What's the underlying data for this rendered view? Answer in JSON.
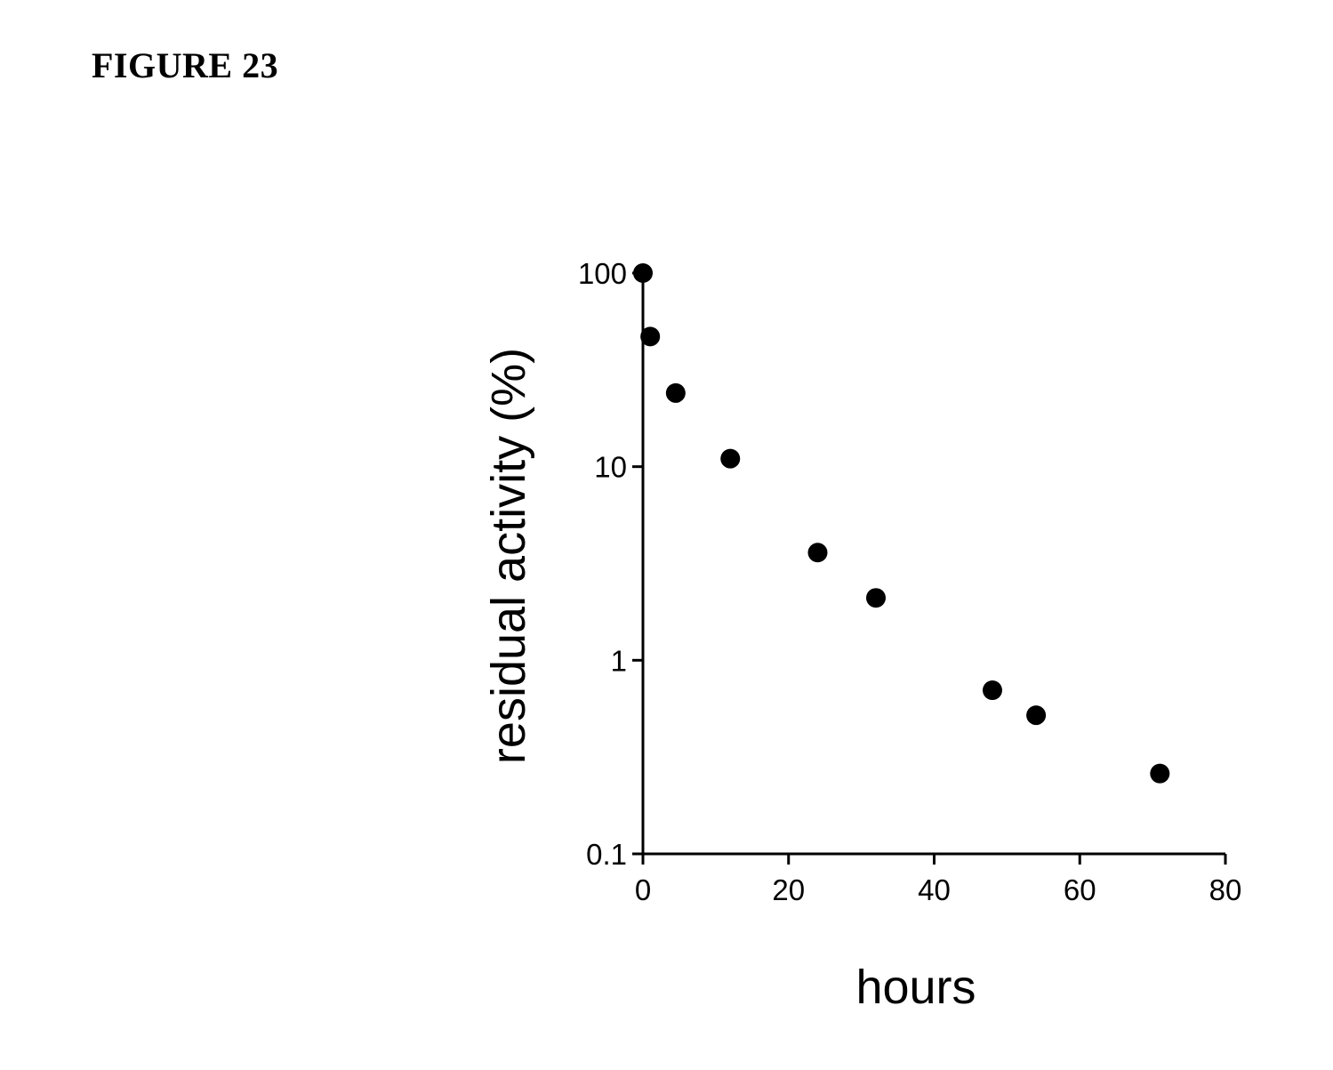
{
  "figure": {
    "title": "FIGURE 23"
  },
  "chart_data": {
    "type": "scatter",
    "title": "",
    "xlabel": "hours",
    "ylabel": "residual activity (%)",
    "xlim": [
      0,
      80
    ],
    "ylim": [
      0.1,
      100
    ],
    "yscale": "log",
    "x_ticks": [
      0,
      20,
      40,
      60,
      80
    ],
    "x_tick_labels": [
      "0",
      "20",
      "40",
      "60",
      "80"
    ],
    "y_ticks": [
      0.1,
      1,
      10,
      100
    ],
    "y_tick_labels": [
      "0.1",
      "1",
      "10",
      "100"
    ],
    "grid": false,
    "legend": "none",
    "marker_color": "#000000",
    "series": [
      {
        "x": [
          0,
          1,
          4.5,
          12,
          24,
          32,
          48,
          54,
          71
        ],
        "y": [
          100,
          47,
          24,
          11,
          3.6,
          2.1,
          0.7,
          0.52,
          0.26
        ]
      }
    ]
  }
}
